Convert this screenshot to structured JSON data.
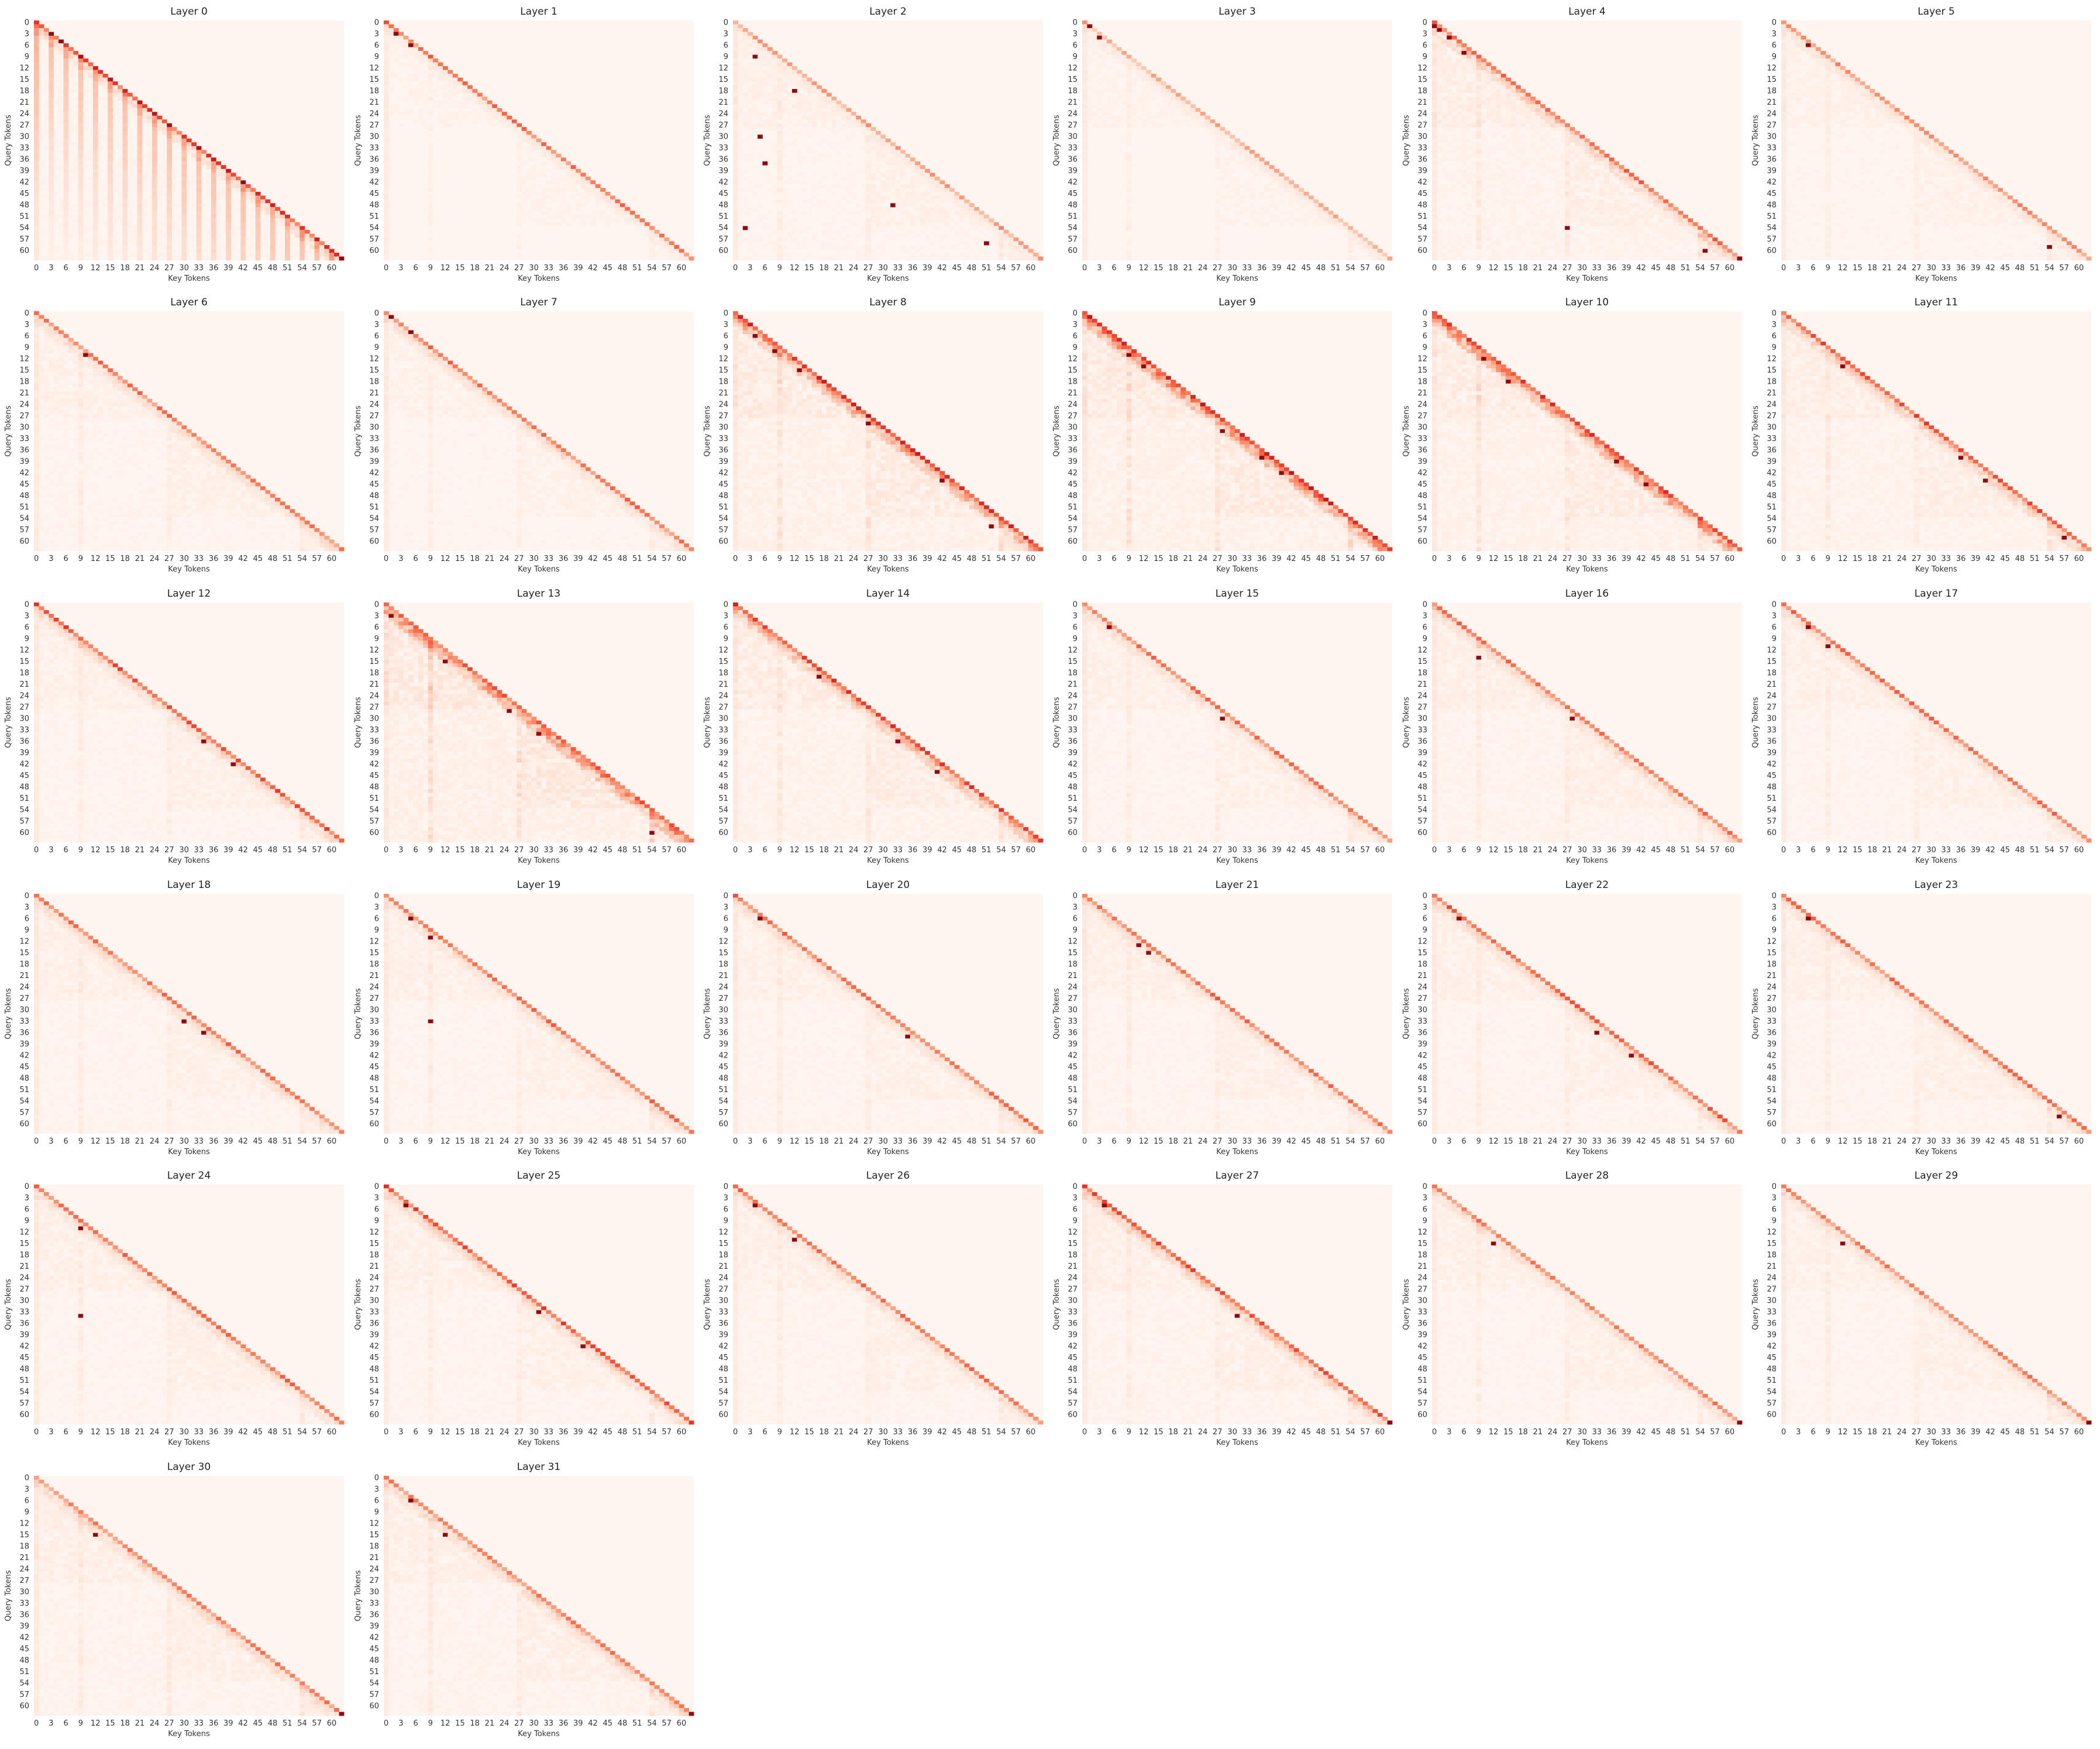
{
  "chart_data": {
    "type": "heatmap",
    "colormap": "Reds",
    "grid": false,
    "colors": {
      "background": "#fff5f0",
      "low": "#fff5f0",
      "high": "#67000d"
    },
    "xlabel": "Key Tokens",
    "ylabel": "Query Tokens",
    "token_count": 63,
    "mask": "causal (lower triangle)",
    "xticks": [
      0,
      3,
      6,
      9,
      12,
      15,
      18,
      21,
      24,
      27,
      30,
      33,
      36,
      39,
      42,
      45,
      48,
      51,
      54,
      57,
      60
    ],
    "yticks": [
      0,
      3,
      6,
      9,
      12,
      15,
      18,
      21,
      24,
      27,
      30,
      33,
      36,
      39,
      42,
      45,
      48,
      51,
      54,
      57,
      60
    ],
    "layout": {
      "columns": 6,
      "rows": 6
    },
    "panels": [
      {
        "title": "Layer 0",
        "diag": 0.7,
        "spread": 0.12,
        "offdiag": 0.02,
        "streak": 0.25,
        "segments": false,
        "hot": [
          [
            3,
            3
          ],
          [
            5,
            5
          ],
          [
            62,
            62
          ]
        ]
      },
      {
        "title": "Layer 1",
        "diag": 0.55,
        "spread": 0.06,
        "offdiag": 0.03,
        "streak": 0.0,
        "segments": true,
        "hot": [
          [
            3,
            2
          ],
          [
            6,
            5
          ]
        ]
      },
      {
        "title": "Layer 2",
        "diag": 0.4,
        "spread": 0.06,
        "offdiag": 0.05,
        "streak": 0.0,
        "segments": true,
        "hot": [
          [
            9,
            4
          ],
          [
            18,
            12
          ],
          [
            30,
            5
          ],
          [
            37,
            6
          ],
          [
            48,
            32
          ],
          [
            54,
            2
          ],
          [
            58,
            51
          ]
        ]
      },
      {
        "title": "Layer 3",
        "diag": 0.35,
        "spread": 0.06,
        "offdiag": 0.03,
        "streak": 0.0,
        "segments": true,
        "hot": [
          [
            1,
            1
          ],
          [
            4,
            3
          ]
        ]
      },
      {
        "title": "Layer 4",
        "diag": 0.6,
        "spread": 0.15,
        "offdiag": 0.07,
        "streak": 0.0,
        "segments": true,
        "hot": [
          [
            1,
            0
          ],
          [
            2,
            1
          ],
          [
            4,
            3
          ],
          [
            8,
            6
          ],
          [
            54,
            27
          ],
          [
            60,
            55
          ],
          [
            62,
            62
          ]
        ]
      },
      {
        "title": "Layer 5",
        "diag": 0.45,
        "spread": 0.08,
        "offdiag": 0.04,
        "streak": 0.0,
        "segments": true,
        "hot": [
          [
            6,
            5
          ],
          [
            59,
            54
          ]
        ]
      },
      {
        "title": "Layer 6",
        "diag": 0.55,
        "spread": 0.1,
        "offdiag": 0.05,
        "streak": 0.0,
        "segments": true,
        "hot": [
          [
            8,
            9
          ],
          [
            11,
            10
          ]
        ]
      },
      {
        "title": "Layer 7",
        "diag": 0.55,
        "spread": 0.1,
        "offdiag": 0.04,
        "streak": 0.0,
        "segments": true,
        "hot": [
          [
            1,
            1
          ],
          [
            5,
            5
          ]
        ]
      },
      {
        "title": "Layer 8",
        "diag": 0.75,
        "spread": 0.25,
        "offdiag": 0.1,
        "streak": 0.0,
        "segments": true,
        "hot": [
          [
            6,
            4
          ],
          [
            10,
            8
          ],
          [
            15,
            13
          ],
          [
            29,
            27
          ],
          [
            44,
            42
          ],
          [
            56,
            52
          ]
        ]
      },
      {
        "title": "Layer 9",
        "diag": 0.8,
        "spread": 0.3,
        "offdiag": 0.1,
        "streak": 0.0,
        "segments": true,
        "hot": [
          [
            11,
            9
          ],
          [
            14,
            12
          ],
          [
            31,
            28
          ],
          [
            38,
            36
          ],
          [
            42,
            40
          ]
        ]
      },
      {
        "title": "Layer 10",
        "diag": 0.7,
        "spread": 0.28,
        "offdiag": 0.09,
        "streak": 0.0,
        "segments": true,
        "hot": [
          [
            12,
            10
          ],
          [
            18,
            15
          ],
          [
            39,
            37
          ],
          [
            45,
            43
          ]
        ]
      },
      {
        "title": "Layer 11",
        "diag": 0.65,
        "spread": 0.15,
        "offdiag": 0.07,
        "streak": 0.0,
        "segments": true,
        "hot": [
          [
            14,
            12
          ],
          [
            38,
            36
          ],
          [
            44,
            41
          ],
          [
            59,
            57
          ]
        ]
      },
      {
        "title": "Layer 12",
        "diag": 0.65,
        "spread": 0.12,
        "offdiag": 0.05,
        "streak": 0.0,
        "segments": true,
        "hot": [
          [
            36,
            34
          ],
          [
            42,
            40
          ]
        ]
      },
      {
        "title": "Layer 13",
        "diag": 0.6,
        "spread": 0.28,
        "offdiag": 0.12,
        "streak": 0.0,
        "segments": true,
        "hot": [
          [
            3,
            1
          ],
          [
            15,
            12
          ],
          [
            28,
            25
          ],
          [
            34,
            31
          ],
          [
            60,
            54
          ]
        ]
      },
      {
        "title": "Layer 14",
        "diag": 0.7,
        "spread": 0.2,
        "offdiag": 0.08,
        "streak": 0.0,
        "segments": true,
        "hot": [
          [
            19,
            17
          ],
          [
            36,
            33
          ],
          [
            44,
            41
          ]
        ]
      },
      {
        "title": "Layer 15",
        "diag": 0.55,
        "spread": 0.1,
        "offdiag": 0.05,
        "streak": 0.0,
        "segments": true,
        "hot": [
          [
            6,
            5
          ],
          [
            30,
            28
          ]
        ]
      },
      {
        "title": "Layer 16",
        "diag": 0.55,
        "spread": 0.12,
        "offdiag": 0.06,
        "streak": 0.0,
        "segments": true,
        "hot": [
          [
            14,
            9
          ],
          [
            30,
            28
          ]
        ]
      },
      {
        "title": "Layer 17",
        "diag": 0.55,
        "spread": 0.1,
        "offdiag": 0.05,
        "streak": 0.0,
        "segments": true,
        "hot": [
          [
            6,
            5
          ],
          [
            11,
            9
          ]
        ]
      },
      {
        "title": "Layer 18",
        "diag": 0.55,
        "spread": 0.1,
        "offdiag": 0.05,
        "streak": 0.0,
        "segments": true,
        "hot": [
          [
            33,
            30
          ],
          [
            36,
            34
          ]
        ]
      },
      {
        "title": "Layer 19",
        "diag": 0.55,
        "spread": 0.1,
        "offdiag": 0.05,
        "streak": 0.0,
        "segments": true,
        "hot": [
          [
            6,
            5
          ],
          [
            11,
            9
          ],
          [
            33,
            9
          ]
        ]
      },
      {
        "title": "Layer 20",
        "diag": 0.55,
        "spread": 0.1,
        "offdiag": 0.05,
        "streak": 0.0,
        "segments": true,
        "hot": [
          [
            6,
            5
          ],
          [
            37,
            35
          ]
        ]
      },
      {
        "title": "Layer 21",
        "diag": 0.55,
        "spread": 0.1,
        "offdiag": 0.05,
        "streak": 0.0,
        "segments": true,
        "hot": [
          [
            13,
            11
          ],
          [
            15,
            13
          ]
        ]
      },
      {
        "title": "Layer 22",
        "diag": 0.6,
        "spread": 0.12,
        "offdiag": 0.05,
        "streak": 0.0,
        "segments": true,
        "hot": [
          [
            6,
            5
          ],
          [
            36,
            33
          ],
          [
            42,
            40
          ]
        ]
      },
      {
        "title": "Layer 23",
        "diag": 0.55,
        "spread": 0.1,
        "offdiag": 0.05,
        "streak": 0.0,
        "segments": true,
        "hot": [
          [
            6,
            5
          ],
          [
            58,
            56
          ]
        ]
      },
      {
        "title": "Layer 24",
        "diag": 0.55,
        "spread": 0.1,
        "offdiag": 0.05,
        "streak": 0.0,
        "segments": true,
        "hot": [
          [
            34,
            9
          ],
          [
            11,
            9
          ]
        ]
      },
      {
        "title": "Layer 25",
        "diag": 0.65,
        "spread": 0.12,
        "offdiag": 0.05,
        "streak": 0.0,
        "segments": true,
        "hot": [
          [
            5,
            4
          ],
          [
            33,
            31
          ],
          [
            42,
            40
          ]
        ]
      },
      {
        "title": "Layer 26",
        "diag": 0.55,
        "spread": 0.1,
        "offdiag": 0.05,
        "streak": 0.0,
        "segments": true,
        "hot": [
          [
            5,
            4
          ],
          [
            14,
            12
          ]
        ]
      },
      {
        "title": "Layer 27",
        "diag": 0.65,
        "spread": 0.15,
        "offdiag": 0.06,
        "streak": 0.0,
        "segments": true,
        "hot": [
          [
            5,
            4
          ],
          [
            34,
            31
          ],
          [
            62,
            62
          ]
        ]
      },
      {
        "title": "Layer 28",
        "diag": 0.5,
        "spread": 0.1,
        "offdiag": 0.05,
        "streak": 0.0,
        "segments": true,
        "hot": [
          [
            15,
            12
          ],
          [
            62,
            62
          ]
        ]
      },
      {
        "title": "Layer 29",
        "diag": 0.5,
        "spread": 0.1,
        "offdiag": 0.05,
        "streak": 0.0,
        "segments": true,
        "hot": [
          [
            15,
            12
          ],
          [
            62,
            62
          ]
        ]
      },
      {
        "title": "Layer 30",
        "diag": 0.5,
        "spread": 0.12,
        "offdiag": 0.06,
        "streak": 0.0,
        "segments": true,
        "hot": [
          [
            5,
            6
          ],
          [
            15,
            12
          ],
          [
            62,
            62
          ]
        ]
      },
      {
        "title": "Layer 31",
        "diag": 0.5,
        "spread": 0.12,
        "offdiag": 0.06,
        "streak": 0.0,
        "segments": true,
        "hot": [
          [
            6,
            5
          ],
          [
            15,
            12
          ],
          [
            62,
            62
          ]
        ]
      }
    ]
  }
}
